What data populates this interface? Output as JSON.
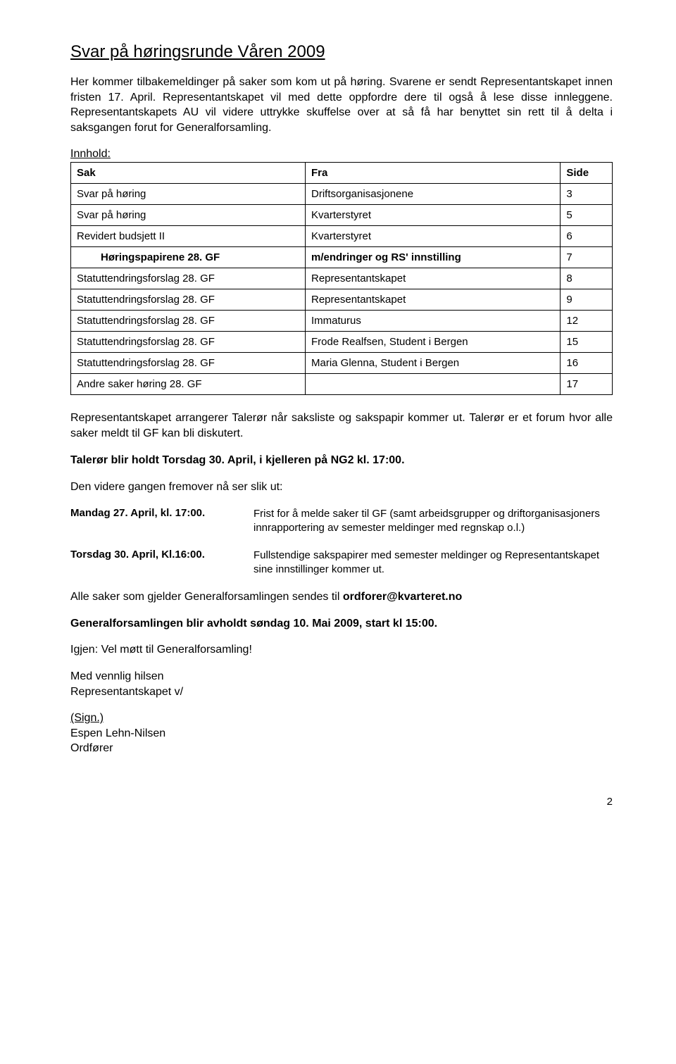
{
  "title": "Svar på høringsrunde Våren 2009",
  "intro1": "Her kommer tilbakemeldinger på saker som kom ut på høring. Svarene er sendt Representantskapet innen fristen 17. April. Representantskapet vil med dette oppfordre dere til også å lese disse innleggene. Representantskapets AU vil videre uttrykke skuffelse over at så få har benyttet sin rett til å delta i saksgangen forut for Generalforsamling.",
  "label_innhold": "Innhold:",
  "table": {
    "headers": [
      "Sak",
      "Fra",
      "Side"
    ],
    "rows": [
      {
        "sak": "Svar på høring",
        "fra": "Driftsorganisasjonene",
        "side": "3",
        "indent": false,
        "boldFra": false
      },
      {
        "sak": "Svar på høring",
        "fra": "Kvarterstyret",
        "side": "5",
        "indent": false,
        "boldFra": false
      },
      {
        "sak": "Revidert budsjett II",
        "fra": "Kvarterstyret",
        "side": "6",
        "indent": false,
        "boldFra": false
      },
      {
        "sak": "Høringspapirene 28. GF",
        "fra": "m/endringer og RS' innstilling",
        "side": "7",
        "indent": true,
        "boldFra": true
      },
      {
        "sak": "Statuttendringsforslag 28. GF",
        "fra": "Representantskapet",
        "side": "8",
        "indent": false,
        "boldFra": false
      },
      {
        "sak": "Statuttendringsforslag 28. GF",
        "fra": "Representantskapet",
        "side": "9",
        "indent": false,
        "boldFra": false
      },
      {
        "sak": "Statuttendringsforslag 28. GF",
        "fra": "Immaturus",
        "side": "12",
        "indent": false,
        "boldFra": false
      },
      {
        "sak": "Statuttendringsforslag 28. GF",
        "fra": "Frode Realfsen, Student i Bergen",
        "side": "15",
        "indent": false,
        "boldFra": false
      },
      {
        "sak": "Statuttendringsforslag 28. GF",
        "fra": "Maria Glenna, Student i Bergen",
        "side": "16",
        "indent": false,
        "boldFra": false
      },
      {
        "sak": "Andre saker høring 28. GF",
        "fra": "",
        "side": "17",
        "indent": false,
        "boldFra": false
      }
    ]
  },
  "para_arrange": "Representantskapet arrangerer Talerør når saksliste og sakspapir kommer ut. Talerør er et forum hvor alle saker meldt til GF kan bli diskutert.",
  "taleror_bold": "Talerør blir holdt Torsdag 30. April, i kjelleren på NG2 kl. 17:00.",
  "para_videre": "Den videre gangen fremover nå ser slik ut:",
  "schedule": [
    {
      "left": "Mandag 27. April, kl. 17:00.",
      "right": "Frist for å melde saker til GF (samt arbeidsgrupper og driftorganisasjoners innrapportering av semester meldinger med regnskap o.l.)"
    },
    {
      "left": "Torsdag 30. April, Kl.16:00.",
      "right": "Fullstendige sakspapirer med semester meldinger og Representantskapet sine innstillinger kommer ut."
    }
  ],
  "closing": {
    "line1a": "Alle saker som gjelder Generalforsamlingen sendes til ",
    "line1b": "ordforer@kvarteret.no",
    "line2": "Generalforsamlingen blir avholdt søndag 10. Mai 2009, start kl 15:00.",
    "line3": "Igjen: Vel møtt til Generalforsamling!",
    "line4": "Med vennlig hilsen",
    "line5": "Representantskapet v/",
    "sign": "(Sign.)",
    "name": "Espen Lehn-Nilsen",
    "role": "Ordfører"
  },
  "page_number": "2",
  "colors": {
    "text": "#000000",
    "background": "#ffffff",
    "border": "#000000"
  }
}
